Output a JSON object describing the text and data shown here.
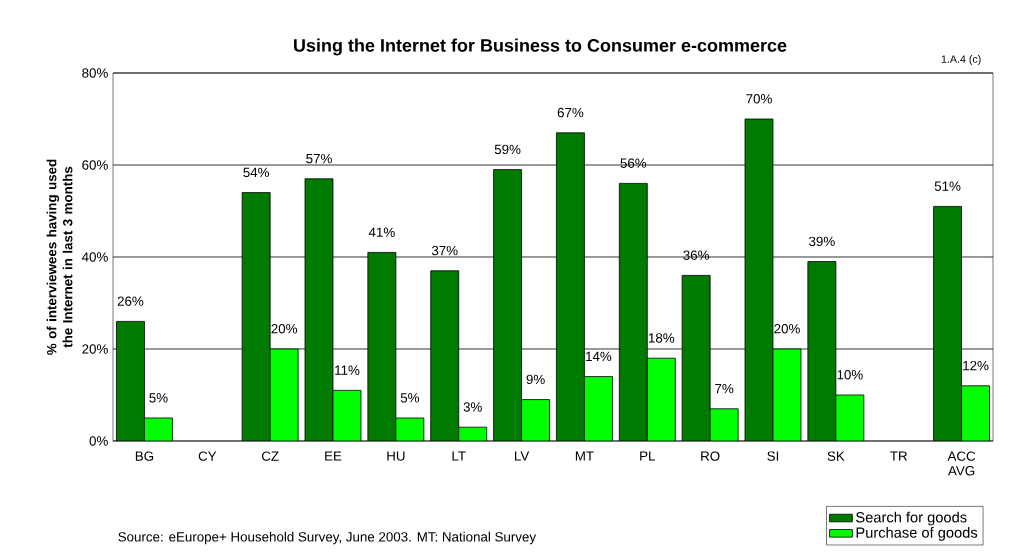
{
  "chart_data": {
    "type": "bar",
    "title": "Using the Internet for Business to Consumer e-commerce",
    "ylabel": "% of interviewees having used the Internet in last 3 months",
    "categories": [
      "BG",
      "CY",
      "CZ",
      "EE",
      "HU",
      "LT",
      "LV",
      "MT",
      "PL",
      "RO",
      "SI",
      "SK",
      "TR",
      "ACC AVG"
    ],
    "series": [
      {
        "name": "Search for goods",
        "color": "#007a00",
        "values": [
          26,
          null,
          54,
          57,
          41,
          37,
          59,
          67,
          56,
          36,
          70,
          39,
          null,
          51
        ],
        "value_labels": [
          "26%",
          null,
          "54%",
          "57%",
          "41%",
          "37%",
          "59%",
          "67%",
          "56%",
          "36%",
          "70%",
          "39%",
          null,
          "51%"
        ]
      },
      {
        "name": "Purchase of goods",
        "color": "#00ff00",
        "values": [
          5,
          null,
          20,
          11,
          5,
          3,
          9,
          14,
          18,
          7,
          20,
          10,
          null,
          12
        ],
        "value_labels": [
          "5%",
          null,
          "20%",
          "11%",
          "5%",
          "3%",
          "9%",
          "14%",
          "18%",
          "7%",
          "20%",
          "10%",
          null,
          "12%"
        ]
      }
    ],
    "ylim": [
      0,
      80
    ],
    "yticks": [
      {
        "value": 0,
        "label": "0%"
      },
      {
        "value": 20,
        "label": "20%"
      },
      {
        "value": 40,
        "label": "40%"
      },
      {
        "value": 60,
        "label": "60%"
      },
      {
        "value": 80,
        "label": "80%"
      }
    ],
    "grid": "y",
    "legend": "bottom right",
    "annotations": [
      "1.A.4 (c)",
      "Source: eEurope+ Household Survey, June 2003. MT: National Survey"
    ]
  }
}
